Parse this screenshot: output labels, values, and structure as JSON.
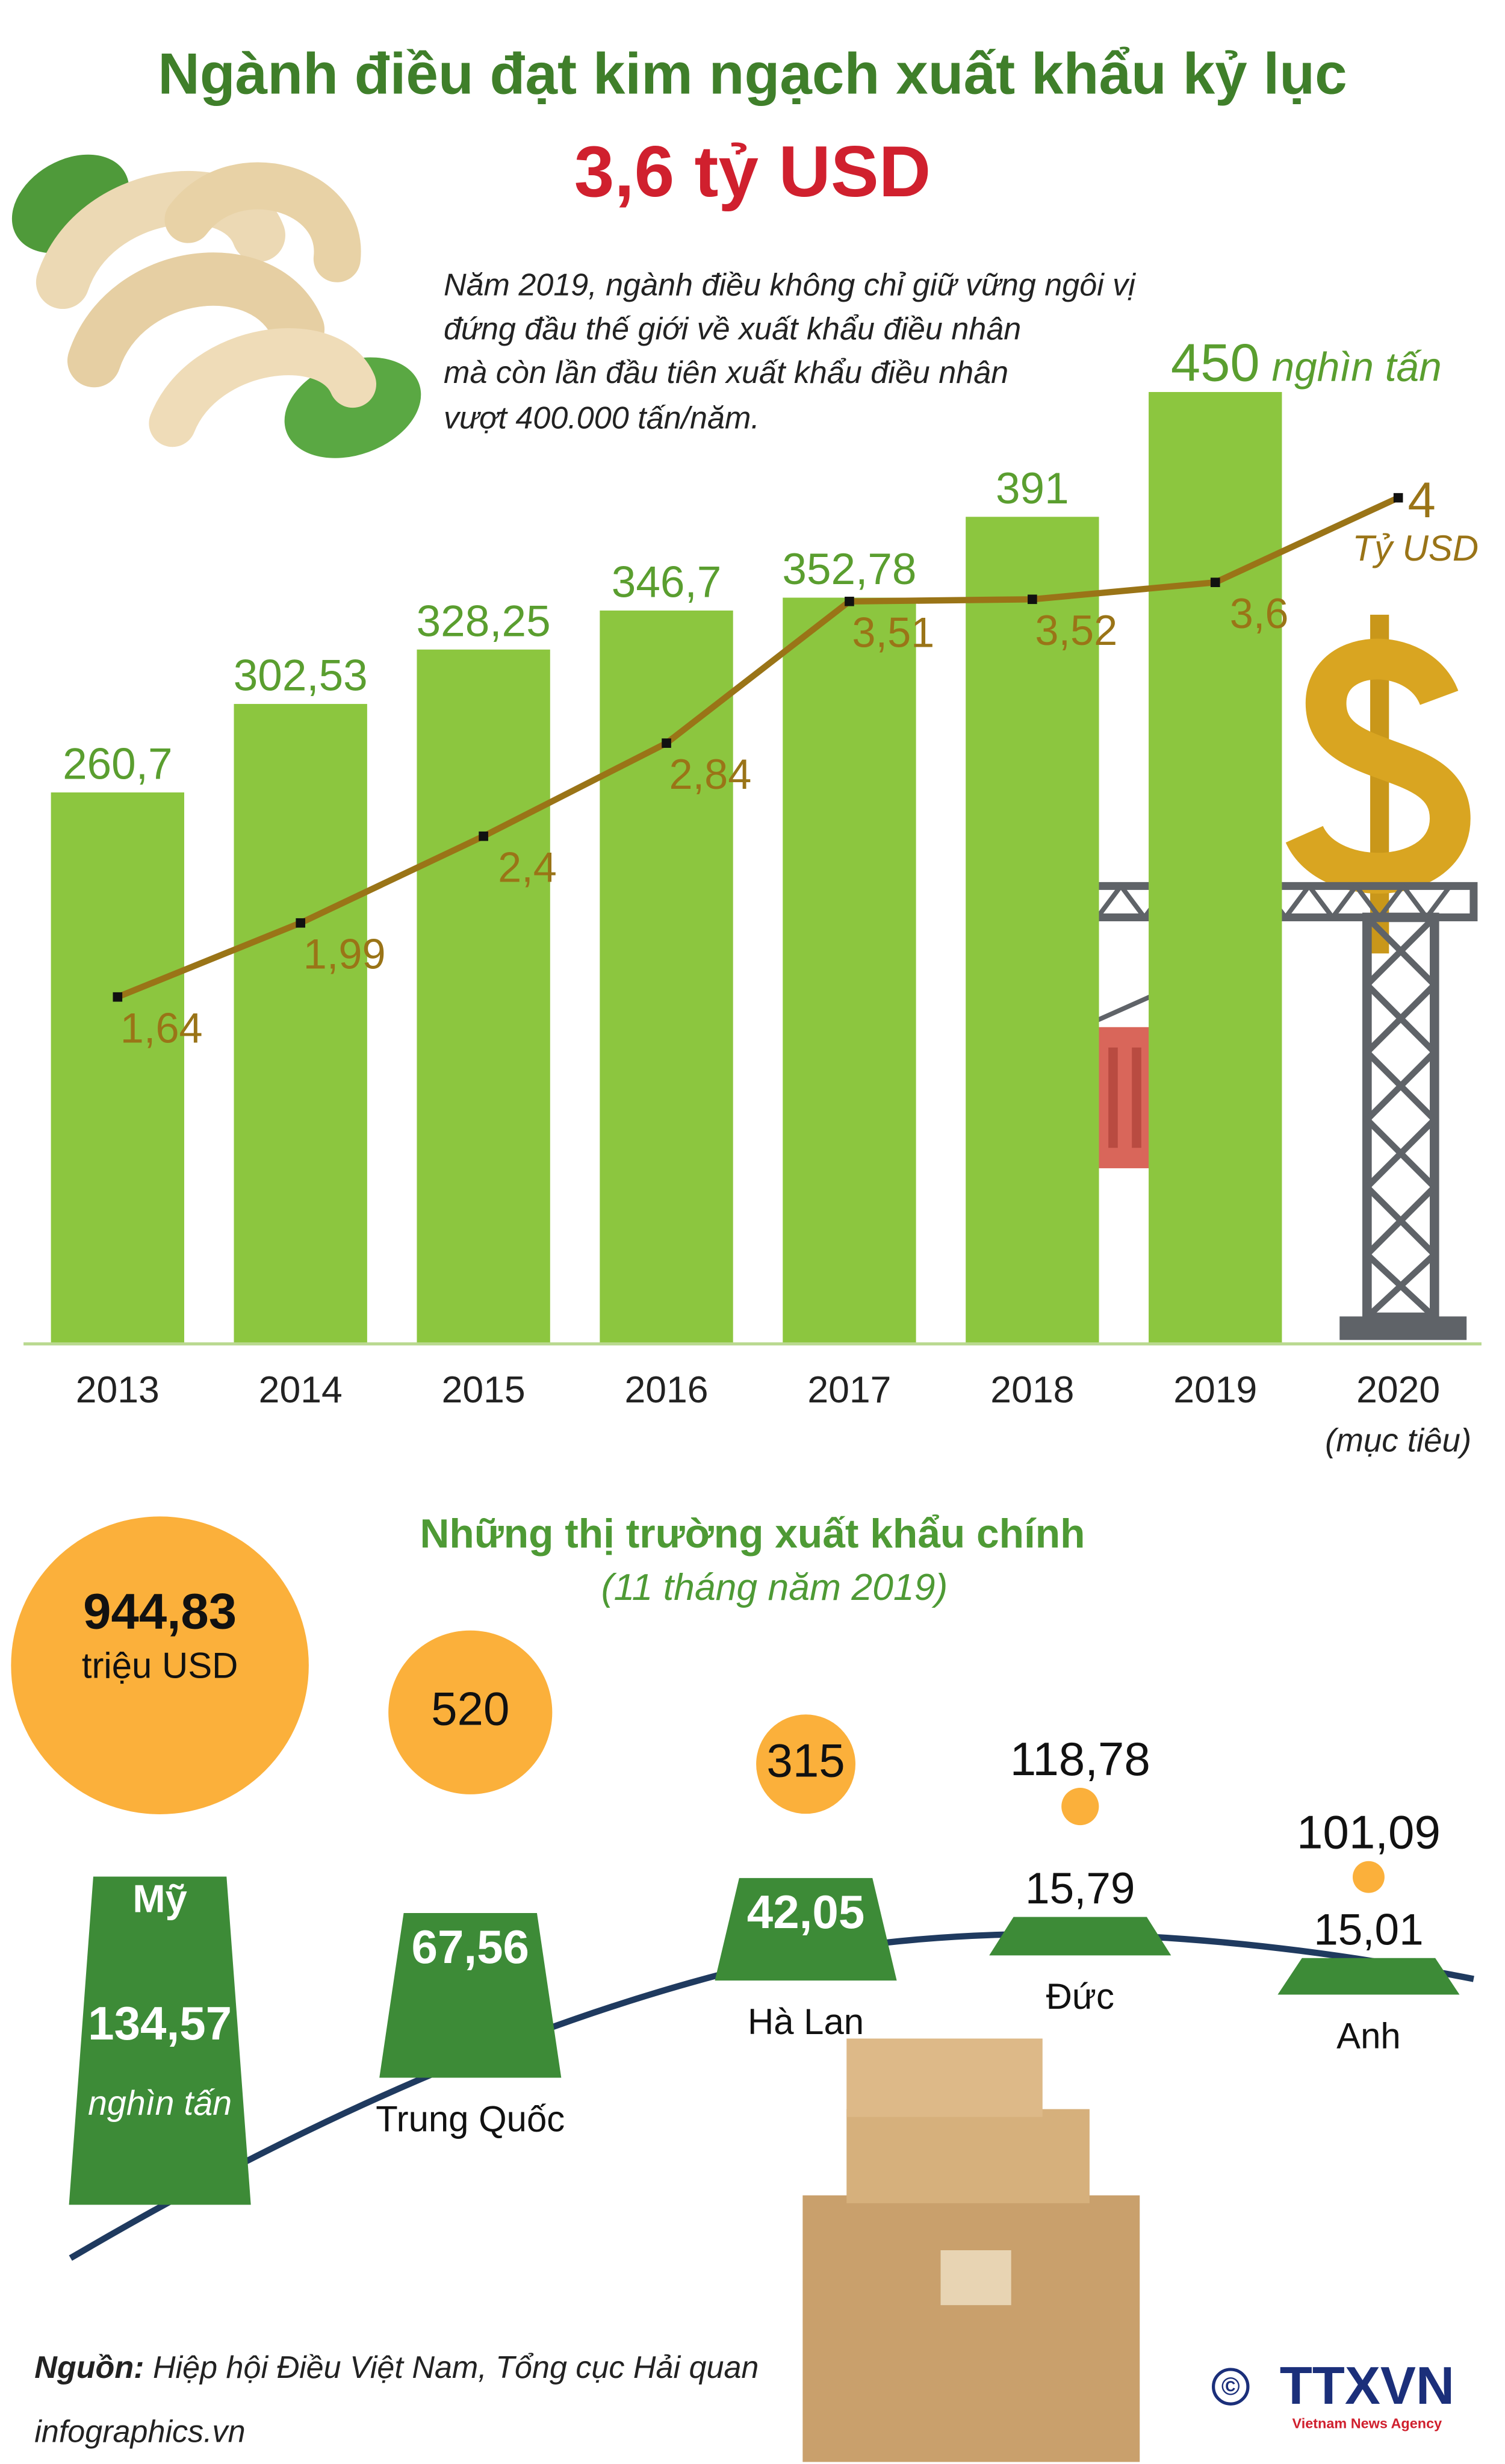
{
  "title": "Ngành điều đạt kim ngạch xuất khẩu kỷ lục",
  "subtitle": "3,6 tỷ USD",
  "annotation": [
    "Năm 2019, ngành điều không chỉ giữ vững ngôi vị",
    "đứng đầu thế giới về xuất khẩu điều nhân",
    "mà còn lần đầu tiên xuất khẩu điều nhân",
    "vượt 400.000 tấn/năm."
  ],
  "chart_data": [
    {
      "type": "bar",
      "categories": [
        "2013",
        "2014",
        "2015",
        "2016",
        "2017",
        "2018",
        "2019",
        "2020"
      ],
      "x_note": "(mục tiêu)",
      "ylim": [
        0,
        470
      ],
      "y2lim": [
        0,
        4.7
      ],
      "series": [
        {
          "type": "bar",
          "unit": "nghìn tấn",
          "color": "#8cc63f",
          "label_color": "#5a9e2f",
          "values": [
            260.7,
            302.53,
            328.25,
            346.7,
            352.78,
            391,
            450,
            null
          ],
          "value_labels": [
            "260,7",
            "302,53",
            "328,25",
            "346,7",
            "352,78",
            "391",
            "450",
            null
          ]
        },
        {
          "type": "line",
          "axis": "y2",
          "unit": "Tỷ USD",
          "color": "#9a7417",
          "values": [
            1.64,
            1.99,
            2.4,
            2.84,
            3.51,
            3.52,
            3.6,
            4
          ],
          "value_labels": [
            "1,64",
            "1,99",
            "2,4",
            "2,84",
            "3,51",
            "3,52",
            "3,6",
            "4"
          ]
        }
      ]
    },
    {
      "type": "bubble",
      "title": "Những thị trường xuất khẩu chính",
      "subtitle": "(11 tháng năm 2019)",
      "categories": [
        "Mỹ",
        "Trung Quốc",
        "Hà Lan",
        "Đức",
        "Anh"
      ],
      "series": [
        {
          "unit": "triệu USD",
          "color": "#fbb03b",
          "values": [
            944.83,
            520,
            315,
            118.78,
            101.09
          ],
          "value_labels": [
            "944,83",
            "520",
            "315",
            "118,78",
            "101,09"
          ]
        },
        {
          "unit": "nghìn tấn",
          "color": "#3d8b37",
          "values": [
            134.57,
            67.56,
            42.05,
            15.79,
            15.01
          ],
          "value_labels": [
            "134,57",
            "67,56",
            "42,05",
            "15,79",
            "15,01"
          ]
        }
      ]
    }
  ],
  "footer": {
    "source_label": "Nguồn:",
    "source": " Hiệp hội Điều Việt Nam, Tổng cục Hải quan",
    "site": "infographics.vn",
    "copyright": "©",
    "logo": "TTXVN",
    "logo_sub": "Vietnam News Agency"
  }
}
